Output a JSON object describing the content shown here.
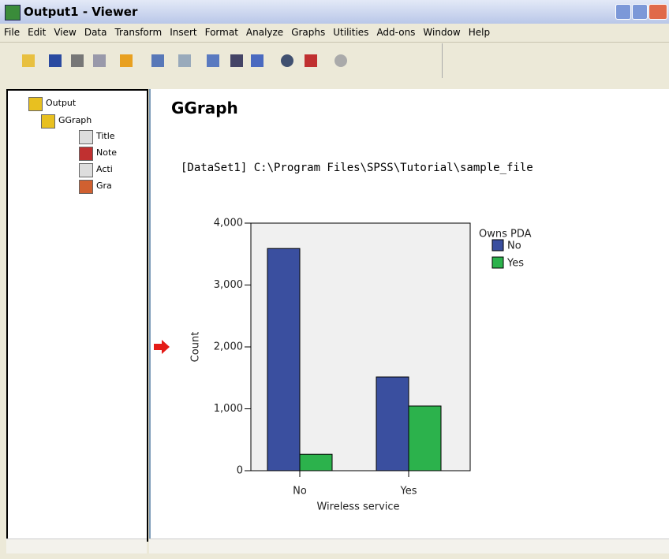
{
  "window": {
    "title": "Output1 - Viewer"
  },
  "menu": [
    "File",
    "Edit",
    "View",
    "Data",
    "Transform",
    "Insert",
    "Format",
    "Analyze",
    "Graphs",
    "Utilities",
    "Add-ons",
    "Window",
    "Help"
  ],
  "tree": {
    "nodes": [
      {
        "label": "Output"
      },
      {
        "label": "GGraph"
      },
      {
        "label": "Title"
      },
      {
        "label": "Note"
      },
      {
        "label": "Acti"
      },
      {
        "label": "Gra"
      }
    ]
  },
  "output": {
    "heading": "GGraph",
    "dataset_line": "[DataSet1] C:\\Program Files\\SPSS\\Tutorial\\sample_file"
  },
  "chart_data": {
    "type": "bar",
    "x_label": "Wireless service",
    "y_label": "Count",
    "legend_title": "Owns PDA",
    "categories": [
      "No",
      "Yes"
    ],
    "series": [
      {
        "name": "No",
        "color": "#3a4f9f",
        "values": [
          3590,
          1515
        ]
      },
      {
        "name": "Yes",
        "color": "#2cb24c",
        "values": [
          265,
          1045
        ]
      }
    ],
    "ylim": [
      0,
      4000
    ],
    "yticks": [
      0,
      {
        "value": 1000,
        "label": "1,000"
      },
      {
        "value": 2000,
        "label": "2,000"
      },
      {
        "value": 3000,
        "label": "3,000"
      },
      {
        "value": 4000,
        "label": "4,000"
      }
    ]
  }
}
